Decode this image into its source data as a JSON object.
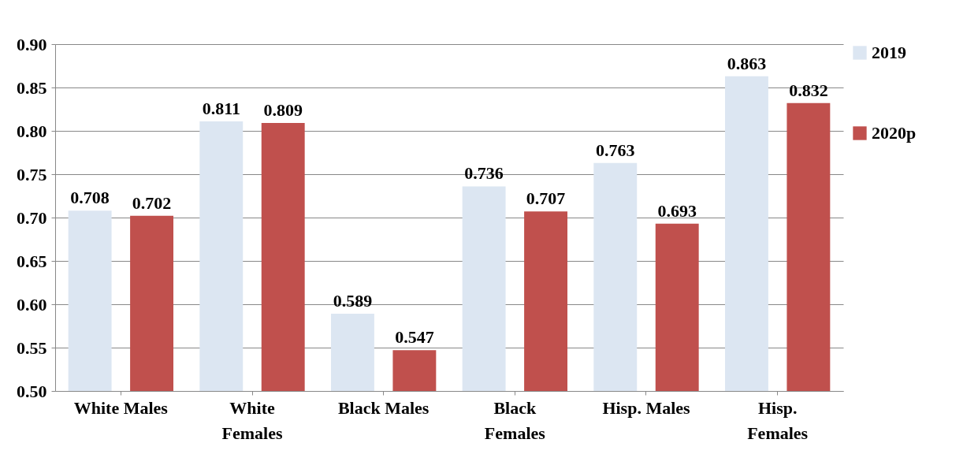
{
  "chart_data": {
    "type": "bar",
    "categories": [
      "White Males",
      "White Females",
      "Black Males",
      "Black Females",
      "Hisp. Males",
      "Hisp. Females"
    ],
    "series": [
      {
        "name": "2019",
        "color": "#dce6f2",
        "values": [
          0.708,
          0.811,
          0.589,
          0.736,
          0.763,
          0.863
        ]
      },
      {
        "name": "2020p",
        "color": "#c0504d",
        "values": [
          0.702,
          0.809,
          0.547,
          0.707,
          0.693,
          0.832
        ]
      }
    ],
    "ylim": [
      0.5,
      0.9
    ],
    "yticks": [
      {
        "value": 0.5,
        "label": "0.50"
      },
      {
        "value": 0.55,
        "label": "0.55"
      },
      {
        "value": 0.6,
        "label": "0.60"
      },
      {
        "value": 0.65,
        "label": "0.65"
      },
      {
        "value": 0.7,
        "label": "0.70"
      },
      {
        "value": 0.75,
        "label": "0.75"
      },
      {
        "value": 0.8,
        "label": "0.80"
      },
      {
        "value": 0.85,
        "label": "0.85"
      },
      {
        "value": 0.9,
        "label": "0.90"
      }
    ],
    "grid": "y",
    "legend": "right",
    "data_labels": true
  }
}
